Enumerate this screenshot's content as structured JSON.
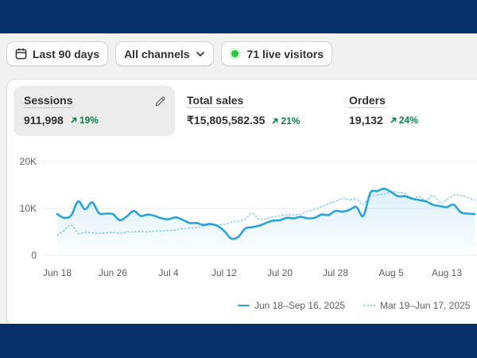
{
  "filters": {
    "date_range": "Last 90 days",
    "channels": "All channels",
    "live_visitors": "71 live visitors"
  },
  "metrics": [
    {
      "label": "Sessions",
      "value": "911,998",
      "delta": "19%"
    },
    {
      "label": "Total sales",
      "value": "₹15,805,582.35",
      "delta": "21%"
    },
    {
      "label": "Orders",
      "value": "19,132",
      "delta": "24%"
    }
  ],
  "colors": {
    "primary_series": "#29a3dc",
    "comparison_series": "#92cfee",
    "positive": "#0c8044",
    "live_dot": "#28c840"
  },
  "icons": {
    "date": "calendar-icon",
    "channels_toggle": "chevron-down-icon",
    "edit": "pencil-icon",
    "delta": "arrow-up-right-icon"
  },
  "chart_data": {
    "type": "line",
    "title": "",
    "xlabel": "",
    "ylabel": "",
    "ylim": [
      0,
      20000
    ],
    "y_ticks": [
      "0",
      "10K",
      "20K"
    ],
    "y_tick_values": [
      0,
      10000,
      20000
    ],
    "x_ticks": [
      "Jun 18",
      "Jun 26",
      "Jul 4",
      "Jul 12",
      "Jul 20",
      "Jul 28",
      "Aug 5",
      "Aug 13"
    ],
    "x_tick_days": [
      0,
      8,
      16,
      24,
      32,
      40,
      48,
      56
    ],
    "grid": true,
    "legend": "bottom-right",
    "series": [
      {
        "name": "Jun 18–Sep 16, 2025",
        "style": "solid",
        "x": [
          0,
          1,
          2,
          3,
          4,
          5,
          6,
          7,
          8,
          9,
          10,
          11,
          12,
          13,
          14,
          15,
          16,
          17,
          18,
          19,
          20,
          21,
          22,
          23,
          24,
          25,
          26,
          27,
          28,
          29,
          30,
          31,
          32,
          33,
          34,
          35,
          36,
          37,
          38,
          39,
          40,
          41,
          42,
          43,
          44,
          45,
          46,
          47,
          48,
          49,
          50,
          51,
          52,
          53,
          54,
          55,
          56,
          57,
          58,
          59,
          60
        ],
        "values": [
          8800,
          8000,
          8500,
          11500,
          9800,
          11300,
          9000,
          8900,
          8800,
          7500,
          8300,
          9500,
          8400,
          8700,
          8400,
          7900,
          7700,
          8100,
          7600,
          6900,
          6900,
          6500,
          6700,
          6300,
          5200,
          3600,
          3900,
          5700,
          6000,
          6300,
          6900,
          7400,
          7500,
          8000,
          7900,
          8200,
          7900,
          8000,
          8700,
          8600,
          9500,
          9300,
          9700,
          10300,
          8400,
          13300,
          13700,
          14200,
          13500,
          12600,
          12600,
          12100,
          11800,
          11500,
          10800,
          10500,
          10300,
          10800,
          9200,
          8900,
          8800
        ]
      },
      {
        "name": "Mar 19–Jun 17, 2025",
        "style": "dotted",
        "x": [
          0,
          1,
          2,
          3,
          4,
          5,
          6,
          7,
          8,
          9,
          10,
          11,
          12,
          13,
          14,
          15,
          16,
          17,
          18,
          19,
          20,
          21,
          22,
          23,
          24,
          25,
          26,
          27,
          28,
          29,
          30,
          31,
          32,
          33,
          34,
          35,
          36,
          37,
          38,
          39,
          40,
          41,
          42,
          43,
          44,
          45,
          46,
          47,
          48,
          49,
          50,
          51,
          52,
          53,
          54,
          55,
          56,
          57,
          58,
          59,
          60
        ],
        "values": [
          4300,
          5300,
          6500,
          4700,
          4900,
          4800,
          4700,
          4800,
          4900,
          4700,
          5000,
          5000,
          5100,
          5000,
          5200,
          5200,
          5300,
          5400,
          5700,
          5800,
          5900,
          6200,
          6400,
          6500,
          6600,
          7000,
          7300,
          7700,
          9000,
          7700,
          7800,
          8200,
          8400,
          8700,
          8600,
          8800,
          9400,
          9800,
          10400,
          11000,
          11500,
          12100,
          11900,
          12000,
          10900,
          12500,
          12900,
          13000,
          13600,
          13400,
          13200,
          11900,
          12600,
          11700,
          12800,
          11200,
          11900,
          12800,
          12800,
          12300,
          11800
        ]
      }
    ]
  }
}
